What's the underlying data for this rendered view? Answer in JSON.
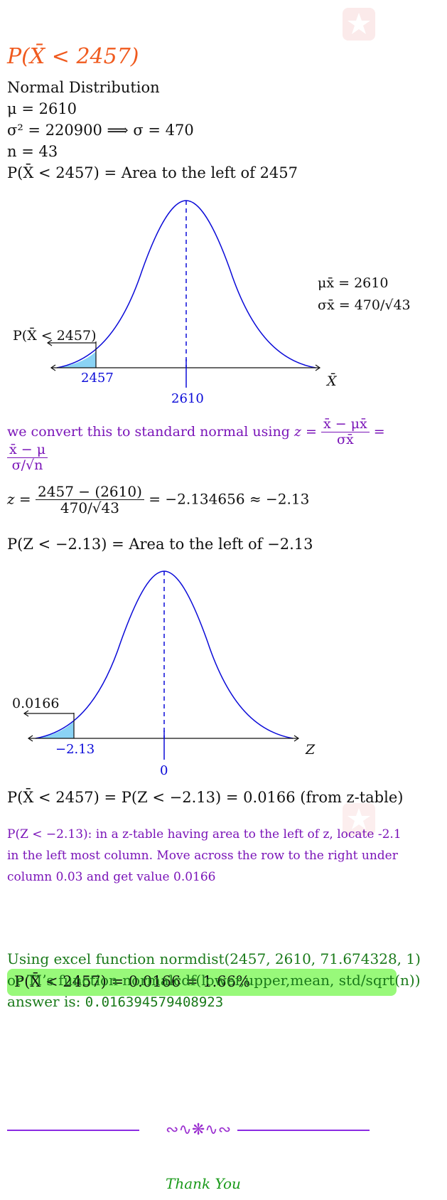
{
  "title": "P(X̄ < 2457)",
  "given": {
    "dist": "Normal Distribution",
    "mu": "μ = 2610",
    "sigma": "σ² = 220900 ⟹ σ = 470",
    "n": "n = 43",
    "prob": "P(X̄ < 2457) = Area to the left of 2457"
  },
  "graph1": {
    "prob_label": "P(X̄ < 2457)",
    "left_val": "2457",
    "mean_val": "2610",
    "axis_label": "X̄",
    "mu_xbar": "μx̄ = 2610",
    "sigma_xbar": "σx̄ = 470/√43"
  },
  "convert": {
    "text": "we convert this to standard normal using",
    "z_eq": "z =",
    "num1": "x̄ − μx̄",
    "den1": "σx̄",
    "eq": "=",
    "num2": "x̄ − μ",
    "den2": "σ/√n"
  },
  "z_calc": {
    "z_eq": "z =",
    "num": "2457 − (2610)",
    "den": "470/√43",
    "result": "= −2.134656 ≈ −2.13"
  },
  "z_prob": "P(Z < −2.13) = Area to the left of −2.13",
  "graph2": {
    "prob_label": "0.0166",
    "left_val": "−2.13",
    "mean_val": "0",
    "axis_label": "Z"
  },
  "result_line": "P(X̄ < 2457) = P(Z < −2.13) = 0.0166 (from z-table)",
  "table_note": {
    "line1": "P(Z < −2.13): in a z-table having area to the left of z, locate -2.1",
    "line2": "in the left most column.  Move across the row to the right under",
    "line3": "column 0.03 and get value 0.0166"
  },
  "answer": "P(X̄ < 2457) = 0.0166 = 1.66%",
  "excel": {
    "line1": "Using excel function normdist(2457, 2610, 71.674328, 1)",
    "line2": "or TI’s function normalcdf(lower,upper,mean, std/sqrt(n))",
    "line3_label": "answer is:",
    "line3_value": "0.016394579408923"
  },
  "footer": {
    "ornament": "∾∿❋∿∾",
    "thanks": "Thank You"
  },
  "colors": {
    "title": "#f05a1e",
    "curve": "#0a0ad8",
    "shade": "#8ad3f5",
    "purple": "#7a14b8",
    "green": "#1a7a1a",
    "answer_bg": "#98f97a"
  }
}
